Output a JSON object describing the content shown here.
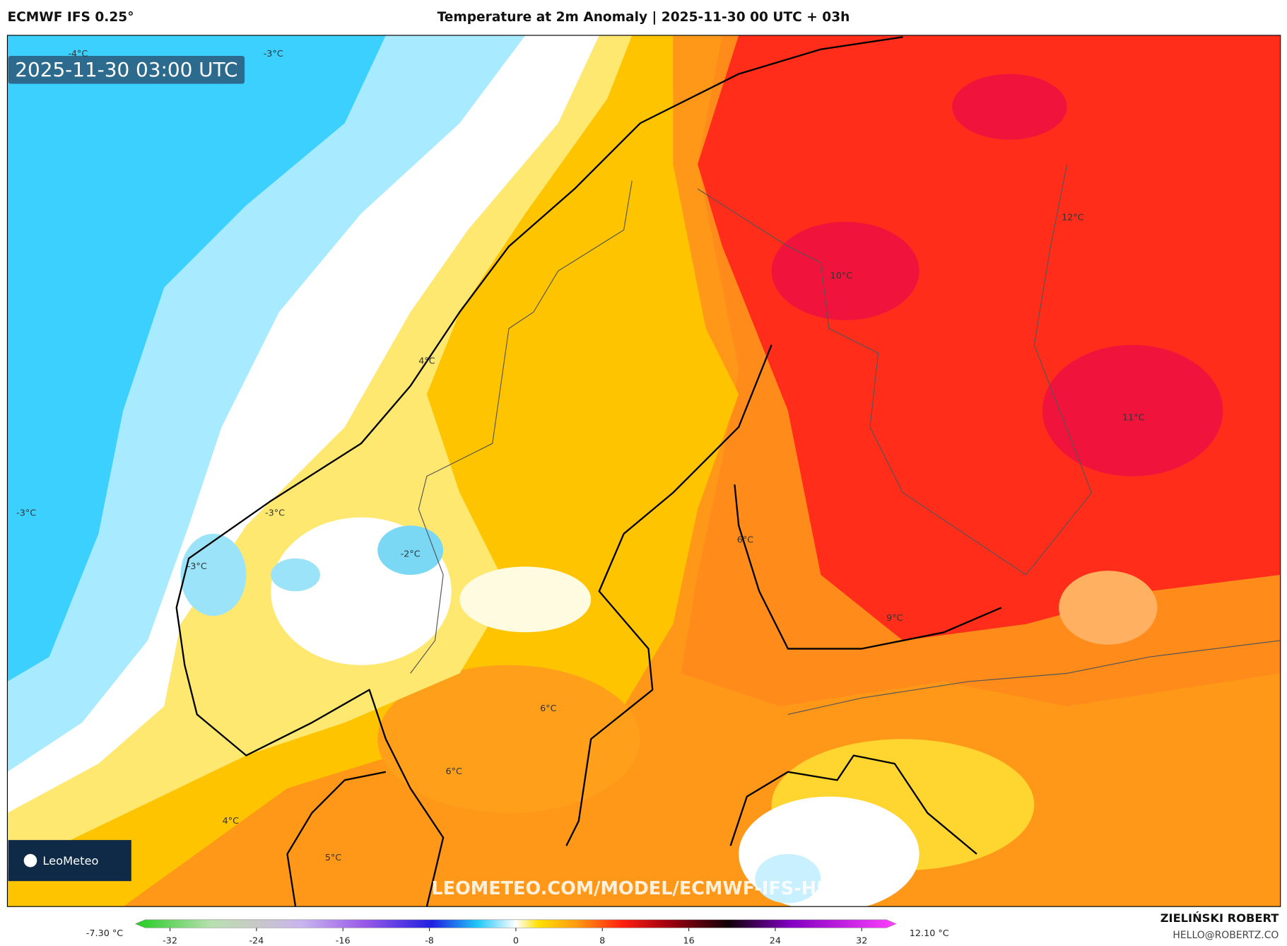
{
  "header": {
    "model": "ECMWF IFS 0.25°",
    "title": "Temperature at 2m Anomaly | 2025-11-30 00 UTC + 03h"
  },
  "map": {
    "timestamp": "2025-11-30 03:00 UTC",
    "contour_labels": [
      "-4°C",
      "-3°C",
      "-3°C",
      "-3°C",
      "-3°C",
      "4°C",
      "-2°C",
      "10°C",
      "12°C",
      "11°C",
      "6°C",
      "9°C",
      "6°C",
      "6°C",
      "4°C",
      "5°C"
    ],
    "watermark": "LEOMETEO.COM/MODEL/ECMWF-IFS-HRES",
    "logo": "LeoMeteo"
  },
  "colorbar": {
    "min_label": "-7.30 °C",
    "max_label": "12.10 °C",
    "lim": [
      -35.2,
      35.2
    ],
    "ticks": [
      -32,
      -24,
      -16,
      -8,
      0,
      8,
      16,
      24,
      32
    ]
  },
  "footer": {
    "author": "ZIELIŃSKI ROBERT",
    "email": "HELLO@ROBERTZ.CO"
  }
}
